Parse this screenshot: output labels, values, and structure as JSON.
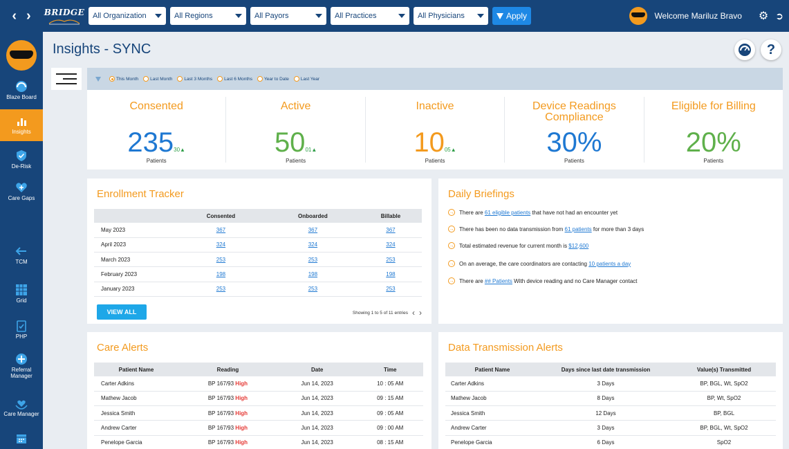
{
  "topbar": {
    "prev_icon": "chevron-left-icon",
    "next_icon": "chevron-right-icon",
    "logo_text": "BRIDGE",
    "filters": [
      "All Organization",
      "All Regions",
      "All Payors",
      "All Practices",
      "All Physicians"
    ],
    "apply_label": "Apply",
    "welcome": "Welcome Mariluz Bravo"
  },
  "sidebar": {
    "items": [
      {
        "label": "Blaze Board",
        "icon": "speedometer-icon"
      },
      {
        "label": "Insights",
        "icon": "bar-chart-icon"
      },
      {
        "label": "De-Risk",
        "icon": "shield-check-icon"
      },
      {
        "label": "Care Gaps",
        "icon": "heart-plus-icon"
      },
      {
        "label": "TCM",
        "icon": "arrow-left-icon"
      },
      {
        "label": "Grid",
        "icon": "grid-icon"
      },
      {
        "label": "PHP",
        "icon": "clipboard-icon"
      },
      {
        "label": "Referral Manager",
        "icon": "plus-circle-icon"
      },
      {
        "label": "Care Manager",
        "icon": "hands-heart-icon"
      },
      {
        "label": "",
        "icon": "calendar-icon"
      }
    ]
  },
  "header": {
    "title": "Insights - SYNC",
    "help_label": "?"
  },
  "period": {
    "options": [
      "This Month",
      "Last Month",
      "Last 3 Months",
      "Last 6 Months",
      "Year to Date",
      "Last Year"
    ],
    "selected_index": 0
  },
  "kpis": [
    {
      "title": "Consented",
      "value": "235",
      "delta": "30▲",
      "unit": "Patients",
      "color": "#1e78d2"
    },
    {
      "title": "Active",
      "value": "50",
      "delta": "01▲",
      "unit": "Patients",
      "color": "#5fb04b"
    },
    {
      "title": "Inactive",
      "value": "10",
      "delta": "05▲",
      "unit": "Patients",
      "color": "#f39a1e"
    },
    {
      "title": "Device Readings Compliance",
      "value": "30%",
      "delta": "",
      "unit": "Patients",
      "color": "#1e78d2"
    },
    {
      "title": "Eligible for Billing",
      "value": "20%",
      "delta": "",
      "unit": "Patients",
      "color": "#5fb04b"
    }
  ],
  "enrollment": {
    "title": "Enrollment Tracker",
    "columns": [
      "",
      "Consented",
      "Onboarded",
      "Billable"
    ],
    "rows": [
      [
        "May 2023",
        "367",
        "367",
        "367"
      ],
      [
        "April 2023",
        "324",
        "324",
        "324"
      ],
      [
        "March 2023",
        "253",
        "253",
        "253"
      ],
      [
        "February 2023",
        "198",
        "198",
        "198"
      ],
      [
        "January 2023",
        "253",
        "253",
        "253"
      ]
    ],
    "view_all": "VIEW ALL",
    "showing": "Showing 1 to 5 of 11 entries"
  },
  "briefings": {
    "title": "Daily Briefings",
    "items": [
      {
        "pre": "There are ",
        "link": "61 eligible patients",
        "post": " that have not had an encounter yet"
      },
      {
        "pre": "There has been no data transmission from ",
        "link": "61 patients",
        "post": " for more than 3 days"
      },
      {
        "pre": "Total estimated revenue for current month is ",
        "link": "$12,600",
        "post": ""
      },
      {
        "pre": "On an average, the care coordinators are contacting ",
        "link": "10 patients a day",
        "post": ""
      },
      {
        "pre": "There are ",
        "link": "## Patients",
        "post": " With device reading and no Care Manager contact"
      }
    ]
  },
  "care_alerts": {
    "title": "Care Alerts",
    "columns": [
      "Patient Name",
      "Reading",
      "Date",
      "Time"
    ],
    "rows": [
      {
        "name": "Carter Adkins",
        "reading": "BP 167/93",
        "flag": "High",
        "date": "Jun 14, 2023",
        "time": "10 : 05 AM"
      },
      {
        "name": "Mathew Jacob",
        "reading": "BP 167/93",
        "flag": "High",
        "date": "Jun 14, 2023",
        "time": "09 : 15 AM"
      },
      {
        "name": "Jessica Smith",
        "reading": "BP 167/93",
        "flag": "High",
        "date": "Jun 14, 2023",
        "time": "09 : 05 AM"
      },
      {
        "name": "Andrew Carter",
        "reading": "BP 167/93",
        "flag": "High",
        "date": "Jun 14, 2023",
        "time": "09 : 00 AM"
      },
      {
        "name": "Penelope Garcia",
        "reading": "BP 167/93",
        "flag": "High",
        "date": "Jun 14, 2023",
        "time": "08 : 15 AM"
      }
    ]
  },
  "transmission": {
    "title": "Data Transmission Alerts",
    "columns": [
      "Patient Name",
      "Days since last date transmission",
      "Value(s) Transmitted"
    ],
    "rows": [
      [
        "Carter Adkins",
        "3 Days",
        "BP, BGL, Wt, SpO2"
      ],
      [
        "Mathew Jacob",
        "8 Days",
        "BP, Wt, SpO2"
      ],
      [
        "Jessica Smith",
        "12 Days",
        "BP, BGL"
      ],
      [
        "Andrew Carter",
        "3 Days",
        "BP, BGL, Wt, SpO2"
      ],
      [
        "Penelope Garcia",
        "6 Days",
        "SpO2"
      ]
    ]
  }
}
